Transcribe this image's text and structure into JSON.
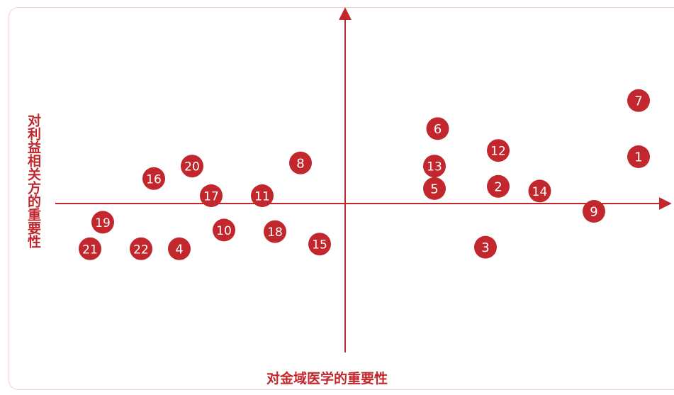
{
  "chart_data": {
    "type": "scatter",
    "xlabel": "对金域医学的重要性",
    "ylabel": "对利益相关方的重要性",
    "xlim": [
      -5,
      5
    ],
    "ylim": [
      -5,
      5
    ],
    "point_color": "#c1272d",
    "axis_color": "#c1272d",
    "points": [
      {
        "label": "1",
        "x": 4.6,
        "y": 1.5
      },
      {
        "label": "2",
        "x": 2.4,
        "y": 0.55
      },
      {
        "label": "3",
        "x": 2.2,
        "y": -1.4
      },
      {
        "label": "4",
        "x": -2.6,
        "y": -1.45
      },
      {
        "label": "5",
        "x": 1.4,
        "y": 0.48
      },
      {
        "label": "6",
        "x": 1.45,
        "y": 2.4
      },
      {
        "label": "7",
        "x": 4.6,
        "y": 3.3
      },
      {
        "label": "8",
        "x": -0.7,
        "y": 1.3
      },
      {
        "label": "9",
        "x": 3.9,
        "y": -0.25
      },
      {
        "label": "10",
        "x": -1.9,
        "y": -0.85
      },
      {
        "label": "11",
        "x": -1.3,
        "y": 0.25
      },
      {
        "label": "12",
        "x": 2.4,
        "y": 1.7
      },
      {
        "label": "13",
        "x": 1.4,
        "y": 1.2
      },
      {
        "label": "14",
        "x": 3.05,
        "y": 0.4
      },
      {
        "label": "15",
        "x": -0.4,
        "y": -1.3
      },
      {
        "label": "16",
        "x": -3.0,
        "y": 0.8
      },
      {
        "label": "17",
        "x": -2.1,
        "y": 0.25
      },
      {
        "label": "18",
        "x": -1.1,
        "y": -0.9
      },
      {
        "label": "19",
        "x": -3.8,
        "y": -0.6
      },
      {
        "label": "20",
        "x": -2.4,
        "y": 1.2
      },
      {
        "label": "21",
        "x": -4.0,
        "y": -1.45
      },
      {
        "label": "22",
        "x": -3.2,
        "y": -1.45
      }
    ]
  }
}
